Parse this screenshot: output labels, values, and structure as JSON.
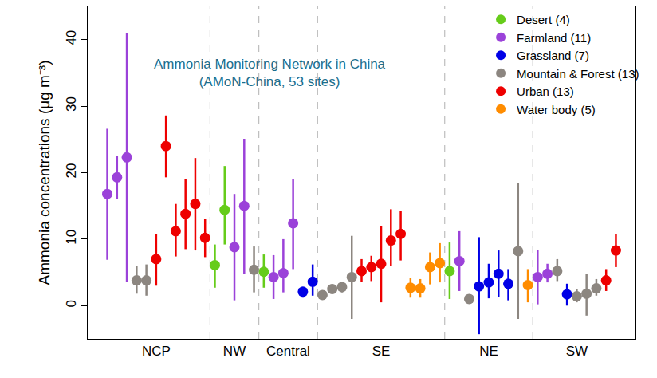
{
  "chart_data": {
    "type": "scatter",
    "marker": "circle",
    "y_label": "Ammonia concentrations (μg m⁻³)",
    "annotations": [
      "Ammonia Monitoring Network in China",
      "(AMoN-China, 53 sites)"
    ],
    "xlim": [
      -2,
      54
    ],
    "xticks": [
      {
        "value": 5,
        "label": "NCP"
      },
      {
        "value": 13,
        "label": "NW"
      },
      {
        "value": 18.5,
        "label": "Central"
      },
      {
        "value": 28,
        "label": "SE"
      },
      {
        "value": 39,
        "label": "NE"
      },
      {
        "value": 48,
        "label": "SW"
      }
    ],
    "region_dividers": [
      10.5,
      15.5,
      21.5,
      34.5,
      43.5
    ],
    "ylim": [
      -5,
      45
    ],
    "yticks": [
      0,
      10,
      20,
      30,
      40
    ],
    "grid": false,
    "legend": "top right",
    "series": [
      {
        "name": "Desert (4)",
        "color": "#66cc1a",
        "x": [
          11,
          12,
          16,
          35
        ],
        "values": [
          6.1,
          14.4,
          5.1,
          5.2
        ],
        "lower": [
          2.7,
          9.2,
          2.7,
          1.0
        ],
        "upper": [
          9.2,
          21,
          7.7,
          9.5
        ]
      },
      {
        "name": "Farmland (11)",
        "color": "#9b42d9",
        "x": [
          0,
          1,
          2,
          13,
          14,
          17,
          18,
          19,
          36,
          44,
          45
        ],
        "values": [
          16.8,
          19.3,
          22.3,
          8.8,
          15.0,
          4.3,
          4.9,
          12.4,
          6.7,
          4.3,
          4.8
        ],
        "lower": [
          6.9,
          16,
          3.5,
          0.8,
          4.8,
          1,
          2,
          5.5,
          2.2,
          0.2,
          3.5
        ],
        "upper": [
          26.6,
          22.5,
          41,
          16.8,
          25.1,
          7.6,
          10,
          19,
          11.2,
          8.4,
          6.3
        ]
      },
      {
        "name": "Grassland (7)",
        "color": "#0000e6",
        "x": [
          20,
          21,
          38,
          39,
          40,
          41,
          47
        ],
        "values": [
          2.1,
          3.6,
          2.9,
          3.5,
          4.8,
          3.3,
          1.7
        ],
        "lower": [
          1.2,
          1.5,
          -4.3,
          1.1,
          1.3,
          0.8,
          0
        ],
        "upper": [
          2.7,
          6.2,
          10.3,
          6.3,
          8.3,
          5.5,
          3.3
        ]
      },
      {
        "name": "Mountain & Forest (13)",
        "color": "#8c8680",
        "x": [
          3,
          4,
          15,
          22,
          23,
          24,
          25,
          37,
          42,
          46,
          48,
          49,
          50
        ],
        "values": [
          3.8,
          3.8,
          5.4,
          1.6,
          2.5,
          2.8,
          4.3,
          1.0,
          8.2,
          5.2,
          1.4,
          1.8,
          2.6
        ],
        "lower": [
          1.8,
          1.5,
          2,
          1,
          1.8,
          2,
          -2,
          0.8,
          -2,
          3.7,
          0.5,
          -1.5,
          1.5
        ],
        "upper": [
          6,
          6.2,
          8.9,
          2.2,
          3.2,
          3.6,
          10.5,
          1.2,
          18.5,
          7,
          2.5,
          4.8,
          4
        ]
      },
      {
        "name": "Urban (13)",
        "color": "#ee0000",
        "x": [
          5,
          6,
          7,
          8,
          9,
          10,
          26,
          27,
          28,
          29,
          30,
          51,
          52
        ],
        "values": [
          7.0,
          24.0,
          11.2,
          13.8,
          15.3,
          10.2,
          5.2,
          5.8,
          6.3,
          9.8,
          10.8,
          3.8,
          8.3
        ],
        "lower": [
          3,
          19.3,
          7.4,
          8.5,
          8.3,
          7.3,
          3.6,
          3.7,
          0.5,
          6,
          6.8,
          2.2,
          5.8
        ],
        "upper": [
          10.8,
          28.6,
          15.3,
          19,
          22.2,
          13,
          7,
          7.5,
          12,
          14.5,
          14.2,
          5.5,
          10.8
        ]
      },
      {
        "name": "Water body (5)",
        "color": "#ff8c00",
        "x": [
          31,
          32,
          33,
          34,
          43
        ],
        "values": [
          2.7,
          2.6,
          5.8,
          6.4,
          3.1
        ],
        "lower": [
          1.2,
          1.2,
          3.2,
          3.5,
          0.5
        ],
        "upper": [
          4.2,
          4,
          8,
          9.4,
          5.5
        ]
      }
    ]
  }
}
